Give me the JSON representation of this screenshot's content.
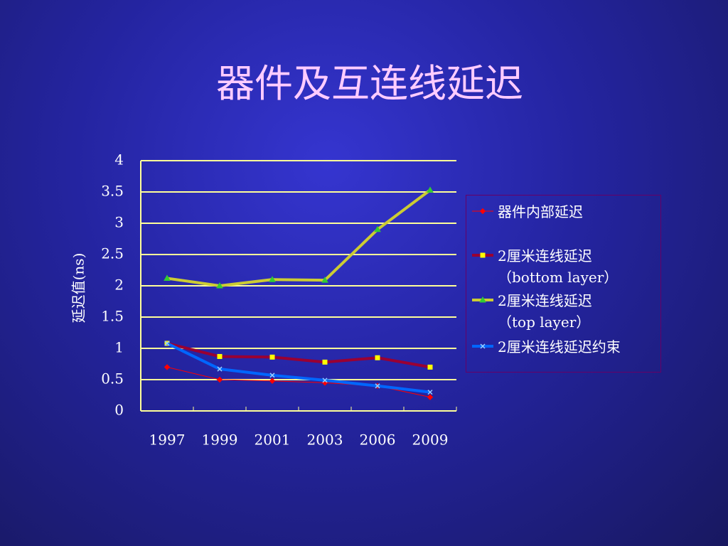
{
  "chart_data": {
    "type": "line",
    "title": "器件及互连线延迟",
    "y_label": "延迟值(ns)",
    "categories": [
      "1997",
      "1999",
      "2001",
      "2003",
      "2006",
      "2009"
    ],
    "series": [
      {
        "name": "器件内部延迟",
        "color": "#ff0000",
        "marker_color": "#ff0000",
        "marker": "diamond",
        "values": [
          0.7,
          0.5,
          0.48,
          0.45,
          0.4,
          0.22
        ]
      },
      {
        "name": "2厘米连线延迟\n（bottom layer）",
        "color": "#990033",
        "marker_color": "#ffff00",
        "marker": "square",
        "values": [
          1.08,
          0.87,
          0.86,
          0.78,
          0.85,
          0.7
        ]
      },
      {
        "name": "2厘米连线延迟\n（top layer）",
        "color": "#cccc33",
        "marker_color": "#33cc33",
        "marker": "triangle",
        "values": [
          2.12,
          2.0,
          2.1,
          2.09,
          2.9,
          3.53
        ]
      },
      {
        "name": "2厘米连线延迟约束",
        "color": "#0066ff",
        "marker_color": "#99ccff",
        "marker": "x",
        "values": [
          1.08,
          0.67,
          0.57,
          0.49,
          0.4,
          0.3
        ]
      }
    ],
    "ylim": [
      0,
      4
    ],
    "yticks": [
      0,
      0.5,
      1,
      1.5,
      2,
      2.5,
      3,
      3.5,
      4
    ],
    "grid": true,
    "legend": "right"
  }
}
